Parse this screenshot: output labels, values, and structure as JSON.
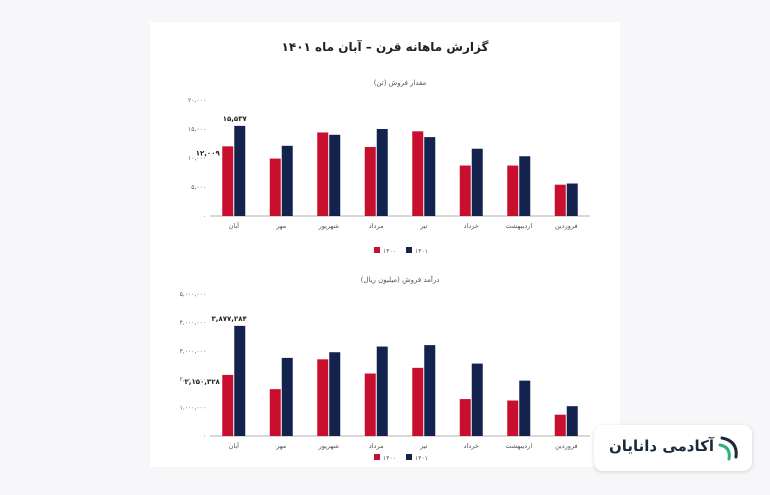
{
  "report": {
    "title": "گزارش ماهانه قرن – آبان ماه ۱۴۰۱"
  },
  "brand": {
    "name": "آکادمی دانایان",
    "logo_icon": "danayan-logo-icon"
  },
  "colors": {
    "series_1400": "#c8102e",
    "series_1401": "#14234e",
    "axis": "#999999",
    "text": "#555555"
  },
  "chart_data": [
    {
      "type": "bar",
      "title": "مقدار فروش (تن)",
      "categories": [
        "فروردین",
        "اردیبهشت",
        "خرداد",
        "تیر",
        "مرداد",
        "شهریور",
        "مهر",
        "آبان"
      ],
      "series": [
        {
          "name": "۱۴۰۰",
          "values": [
            5400,
            8700,
            8700,
            14600,
            11900,
            14400,
            9900,
            12009
          ]
        },
        {
          "name": "۱۴۰۱",
          "values": [
            5600,
            10300,
            11600,
            13600,
            15000,
            14000,
            12100,
            15537
          ]
        }
      ],
      "yticks": [
        "۰",
        "۵,۰۰۰",
        "۱۰,۰۰۰",
        "۱۵,۰۰۰",
        "۲۰,۰۰۰"
      ],
      "ylim": [
        0,
        20000
      ],
      "annotations": [
        {
          "series": 0,
          "category": 7,
          "label": "۱۲,۰۰۹"
        },
        {
          "series": 1,
          "category": 7,
          "label": "۱۵,۵۳۷"
        }
      ],
      "legend": "bottom",
      "grid": false
    },
    {
      "type": "bar",
      "title": "درآمد فروش (میلیون ریال)",
      "categories": [
        "فروردین",
        "اردیبهشت",
        "خرداد",
        "تیر",
        "مرداد",
        "شهریور",
        "مهر",
        "آبان"
      ],
      "series": [
        {
          "name": "۱۴۰۰",
          "values": [
            750000,
            1250000,
            1300000,
            2400000,
            2200000,
            2700000,
            1650000,
            2150328
          ]
        },
        {
          "name": "۱۴۰۱",
          "values": [
            1050000,
            1950000,
            2550000,
            3200000,
            3150000,
            2950000,
            2750000,
            3877284
          ]
        }
      ],
      "yticks": [
        "۰",
        "۱,۰۰۰,۰۰۰",
        "۲,۰۰۰,۰۰۰",
        "۳,۰۰۰,۰۰۰",
        "۴,۰۰۰,۰۰۰",
        "۵,۰۰۰,۰۰۰"
      ],
      "ylim": [
        0,
        5000000
      ],
      "annotations": [
        {
          "series": 0,
          "category": 7,
          "label": "۲,۱۵۰,۳۲۸"
        },
        {
          "series": 1,
          "category": 7,
          "label": "۳,۸۷۷,۲۸۴"
        }
      ],
      "legend": "bottom",
      "grid": false
    }
  ]
}
